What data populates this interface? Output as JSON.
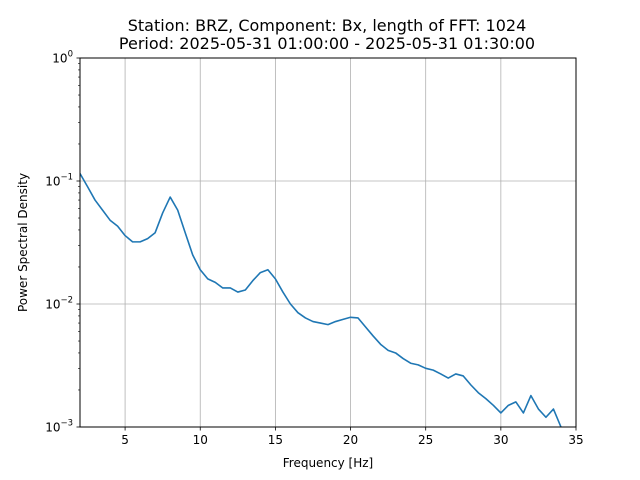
{
  "chart_data": {
    "type": "line",
    "title_lines": [
      "Station: BRZ, Component: Bx, length of FFT: 1024",
      "Period: 2025-05-31 01:00:00 - 2025-05-31 01:30:00"
    ],
    "xlabel": "Frequency [Hz]",
    "ylabel": "Power Spectral Density",
    "xlim": [
      2,
      35
    ],
    "ylim": [
      0.001,
      1
    ],
    "yscale": "log",
    "grid": true,
    "x_ticks": [
      5,
      10,
      15,
      20,
      25,
      30,
      35
    ],
    "y_ticks": [
      {
        "base": "10",
        "exp": "−3",
        "value": 0.001
      },
      {
        "base": "10",
        "exp": "−2",
        "value": 0.01
      },
      {
        "base": "10",
        "exp": "−1",
        "value": 0.1
      },
      {
        "base": "10",
        "exp": "0",
        "value": 1
      }
    ],
    "colors": {
      "line": "#1f77b4",
      "grid": "#b0b0b0"
    },
    "series": [
      {
        "x": [
          2.0,
          2.5,
          3.0,
          3.5,
          4.0,
          4.5,
          5.0,
          5.5,
          6.0,
          6.5,
          7.0,
          7.5,
          8.0,
          8.5,
          9.0,
          9.5,
          10.0,
          10.5,
          11.0,
          11.5,
          12.0,
          12.5,
          13.0,
          13.5,
          14.0,
          14.5,
          15.0,
          15.5,
          16.0,
          16.5,
          17.0,
          17.5,
          18.0,
          18.5,
          19.0,
          19.5,
          20.0,
          20.5,
          21.0,
          21.5,
          22.0,
          22.5,
          23.0,
          23.5,
          24.0,
          24.5,
          25.0,
          25.5,
          26.0,
          26.5,
          27.0,
          27.5,
          28.0,
          28.5,
          29.0,
          29.5,
          30.0,
          30.5,
          31.0,
          31.5,
          32.0,
          32.5,
          33.0,
          33.5,
          34.0
        ],
        "y": [
          0.115,
          0.09,
          0.07,
          0.058,
          0.048,
          0.043,
          0.036,
          0.032,
          0.032,
          0.034,
          0.038,
          0.055,
          0.074,
          0.058,
          0.038,
          0.025,
          0.019,
          0.016,
          0.015,
          0.0135,
          0.0135,
          0.0125,
          0.013,
          0.0155,
          0.018,
          0.019,
          0.016,
          0.0125,
          0.01,
          0.0085,
          0.0077,
          0.0072,
          0.007,
          0.0068,
          0.0072,
          0.0075,
          0.0078,
          0.0077,
          0.0065,
          0.0055,
          0.0047,
          0.0042,
          0.004,
          0.0036,
          0.0033,
          0.0032,
          0.003,
          0.0029,
          0.0027,
          0.0025,
          0.0027,
          0.0026,
          0.0022,
          0.0019,
          0.0017,
          0.0015,
          0.0013,
          0.0015,
          0.0016,
          0.0013,
          0.0018,
          0.0014,
          0.0012,
          0.0014,
          0.001
        ]
      }
    ]
  }
}
